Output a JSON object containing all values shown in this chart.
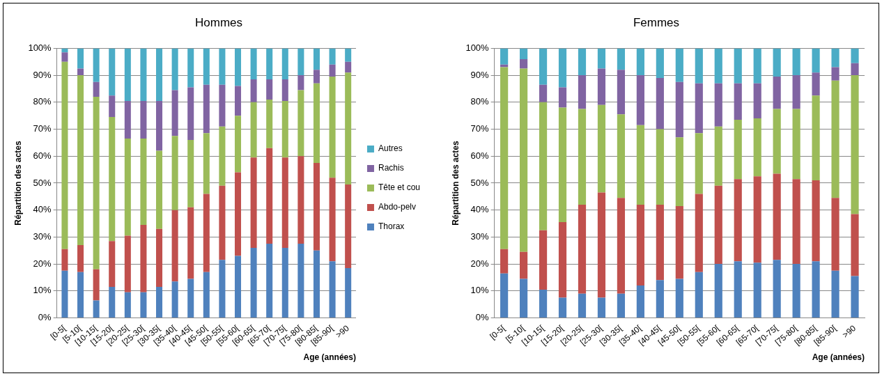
{
  "chart_data": [
    {
      "type": "bar",
      "title": "Hommes",
      "xlabel": "Age (années)",
      "ylabel": "Répartition des actes",
      "stacked": true,
      "grid": "y",
      "legend": "right",
      "categories": [
        "[0-5[",
        "[5-10[",
        "[10-15[",
        "[15-20[",
        "[20-25[",
        "[25-30[",
        "[30-35[",
        "[35-40[",
        "[40-45[",
        "[45-50[",
        "[50-55[",
        "[55-60[",
        "[60-65[",
        "[65-70[",
        "[70-75[",
        "[75-80[",
        "[80-85[",
        "[85-90[",
        ">90"
      ],
      "ylim": [
        0,
        100
      ],
      "yticks": [
        {
          "value": 0,
          "label": "0%"
        },
        {
          "value": 10,
          "label": "10%"
        },
        {
          "value": 20,
          "label": "20%"
        },
        {
          "value": 30,
          "label": "30%"
        },
        {
          "value": 40,
          "label": "40%"
        },
        {
          "value": 50,
          "label": "50%"
        },
        {
          "value": 60,
          "label": "60%"
        },
        {
          "value": 70,
          "label": "70%"
        },
        {
          "value": 80,
          "label": "80%"
        },
        {
          "value": 90,
          "label": "90%"
        },
        {
          "value": 100,
          "label": "100%"
        }
      ],
      "series": [
        {
          "name": "Thorax",
          "color": "#4f81bd",
          "values": [
            17.5,
            17,
            6.5,
            11.5,
            9.5,
            9.5,
            11.5,
            13.5,
            14.5,
            17,
            21.5,
            23,
            26,
            27.5,
            26,
            27.5,
            25,
            21,
            18.5
          ]
        },
        {
          "name": "Abdo-pelv",
          "color": "#c0504d",
          "values": [
            8,
            10,
            11.5,
            17,
            21,
            25,
            21.5,
            26.5,
            26.5,
            29,
            27.5,
            31,
            33.5,
            35.5,
            33.5,
            32.5,
            32.5,
            31,
            31
          ]
        },
        {
          "name": "Tête et cou",
          "color": "#9bbb59",
          "values": [
            69.5,
            63,
            64,
            46,
            36,
            32,
            29,
            27.5,
            25,
            22.5,
            22,
            21,
            20.5,
            18,
            21,
            24.5,
            29.5,
            37.5,
            41.5
          ]
        },
        {
          "name": "Rachis",
          "color": "#8064a2",
          "values": [
            3.5,
            2.5,
            5.5,
            8,
            14,
            14,
            18.5,
            17,
            19.5,
            18,
            15.5,
            11,
            8.5,
            7.5,
            8,
            5.5,
            5,
            4.5,
            4
          ]
        },
        {
          "name": "Autres",
          "color": "#4bacc6",
          "values": [
            1.5,
            7.5,
            12.5,
            17.5,
            19.5,
            19.5,
            19.5,
            15.5,
            14.5,
            13.5,
            13.5,
            14,
            11.5,
            11.5,
            11.5,
            10,
            8,
            6,
            5
          ]
        }
      ]
    },
    {
      "type": "bar",
      "title": "Femmes",
      "xlabel": "Age (années)",
      "ylabel": "Répartition des actes",
      "stacked": true,
      "grid": "y",
      "categories": [
        "[0-5[",
        "[5-10[",
        "[10-15[",
        "[15-20[",
        "[20-25[",
        "[25-30[",
        "[30-35[",
        "[35-40[",
        "[40-45[",
        "[45-50[",
        "[50-55[",
        "[55-60[",
        "[60-65[",
        "[65-70[",
        "[70-75[",
        "[75-80[",
        "[80-85[",
        "[85-90[",
        ">90"
      ],
      "ylim": [
        0,
        100
      ],
      "yticks": [
        {
          "value": 0,
          "label": "0%"
        },
        {
          "value": 10,
          "label": "10%"
        },
        {
          "value": 20,
          "label": "20%"
        },
        {
          "value": 30,
          "label": "30%"
        },
        {
          "value": 40,
          "label": "40%"
        },
        {
          "value": 50,
          "label": "50%"
        },
        {
          "value": 60,
          "label": "60%"
        },
        {
          "value": 70,
          "label": "70%"
        },
        {
          "value": 80,
          "label": "80%"
        },
        {
          "value": 90,
          "label": "90%"
        },
        {
          "value": 100,
          "label": "100%"
        }
      ],
      "series": [
        {
          "color": "#4f81bd",
          "values": [
            16.5,
            14.5,
            10.5,
            7.5,
            9,
            7.5,
            9,
            12,
            14,
            14.5,
            17,
            20,
            21,
            20.5,
            21.5,
            20,
            21,
            17.5,
            15.5
          ]
        },
        {
          "color": "#c0504d",
          "values": [
            9,
            10,
            22,
            28,
            33,
            39,
            35.5,
            30,
            28,
            27,
            29,
            29,
            30.5,
            32,
            32,
            31.5,
            30,
            27,
            23
          ]
        },
        {
          "color": "#9bbb59",
          "values": [
            67.5,
            68,
            47.5,
            42.5,
            35.5,
            32.5,
            31,
            29.5,
            28,
            25.5,
            22.5,
            22,
            22,
            21.5,
            24,
            26,
            31.5,
            43.5,
            51.5
          ]
        },
        {
          "color": "#8064a2",
          "values": [
            1,
            3.5,
            6.5,
            7.5,
            12.5,
            13.5,
            16.5,
            18.5,
            19,
            20.5,
            18.5,
            16,
            13.5,
            13,
            12,
            12.5,
            8.5,
            5,
            4.5
          ]
        },
        {
          "color": "#4bacc6",
          "values": [
            6,
            4,
            13.5,
            14.5,
            10,
            7.5,
            8,
            10,
            11,
            12.5,
            13,
            13,
            13,
            13,
            10.5,
            10,
            9,
            7,
            5.5
          ]
        }
      ]
    }
  ]
}
